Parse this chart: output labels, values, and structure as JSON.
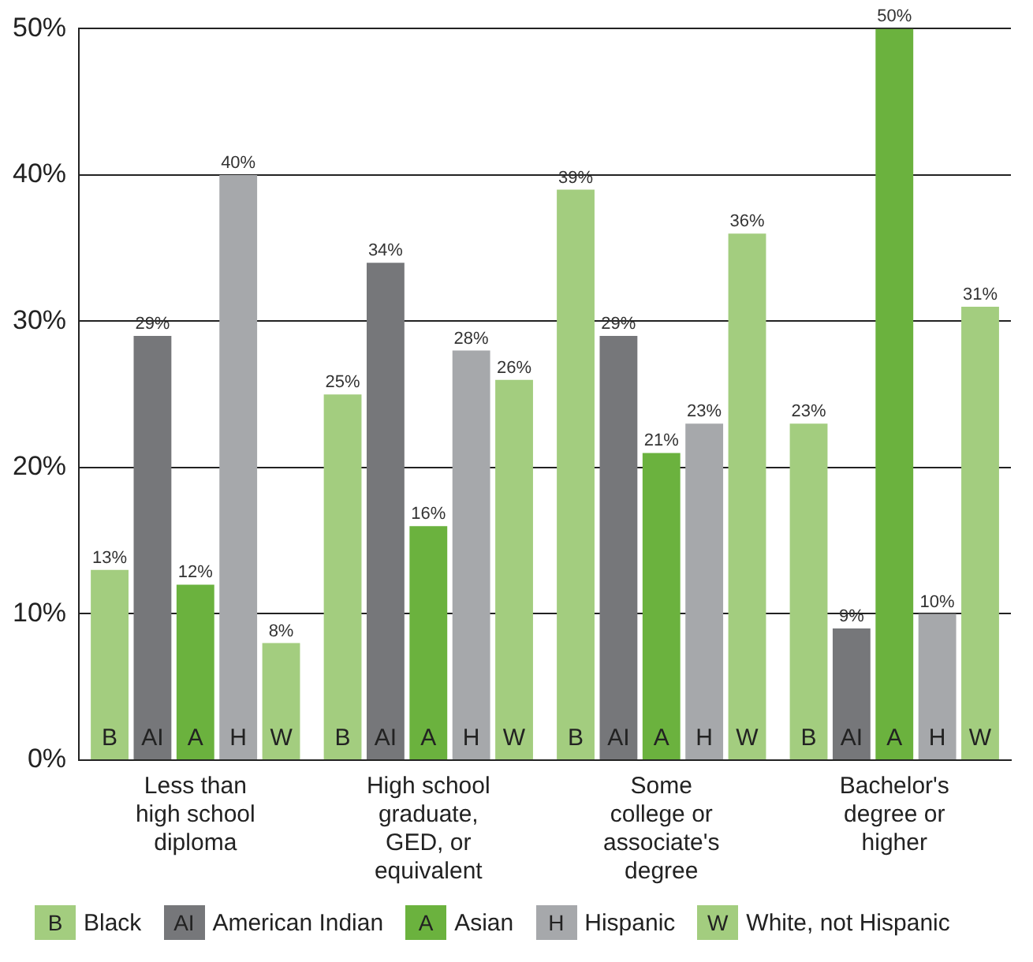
{
  "chart_data": {
    "type": "bar",
    "categories": [
      "Less than\nhigh school\ndiploma",
      "High school\ngraduate,\nGED, or\nequivalent",
      "Some\ncollege or\nassociate's\ndegree",
      "Bachelor's\ndegree or\nhigher"
    ],
    "series": [
      {
        "name": "Black",
        "color": "#a3cd7f",
        "values": [
          13,
          25,
          39,
          23
        ],
        "value_labels": [
          "13%",
          "25%",
          "39%",
          "23%"
        ]
      },
      {
        "name": "American Indian",
        "color": "#76777a",
        "values": [
          29,
          34,
          29,
          9
        ],
        "value_labels": [
          "29%",
          "34%",
          "29%",
          "9%"
        ]
      },
      {
        "name": "Asian",
        "color": "#6bb23e",
        "values": [
          12,
          16,
          21,
          50
        ],
        "value_labels": [
          "12%",
          "16%",
          "21%",
          "50%"
        ]
      },
      {
        "name": "Hispanic",
        "color": "#a6a8ab",
        "values": [
          40,
          28,
          23,
          10
        ],
        "value_labels": [
          "40%",
          "28%",
          "23%",
          "10%"
        ]
      },
      {
        "name": "White, not Hispanic",
        "color": "#a3cd7f",
        "values": [
          8,
          26,
          36,
          31
        ],
        "value_labels": [
          "8%",
          "26%",
          "36%",
          "31%"
        ]
      }
    ],
    "annotations": [
      "B",
      "AI",
      "A",
      "H",
      "W"
    ],
    "ylim": [
      0,
      50
    ],
    "yticks": [
      {
        "value": 0,
        "label": "0%"
      },
      {
        "value": 10,
        "label": "10%"
      },
      {
        "value": 20,
        "label": "20%"
      },
      {
        "value": 30,
        "label": "30%"
      },
      {
        "value": 40,
        "label": "40%"
      },
      {
        "value": 50,
        "label": "50%"
      }
    ],
    "grid": "y",
    "legend": "bottom"
  }
}
